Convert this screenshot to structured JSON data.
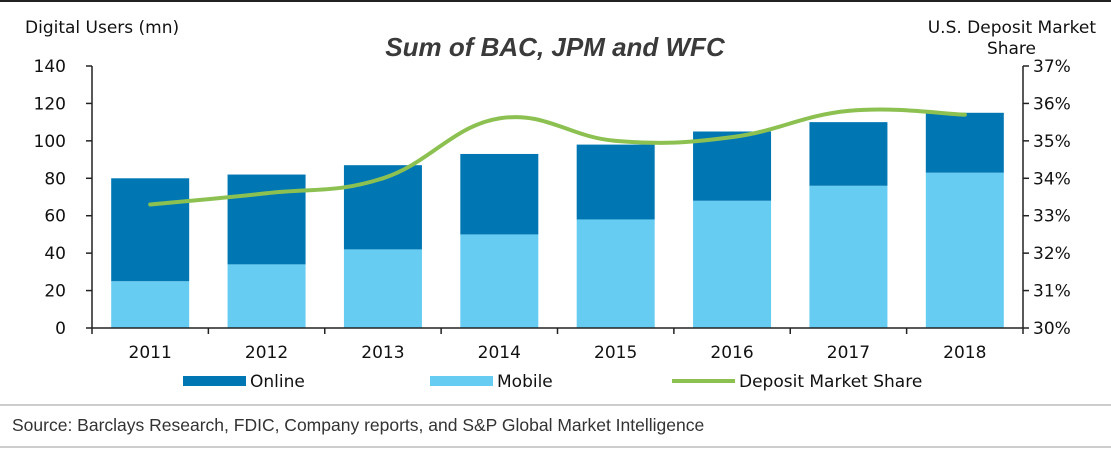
{
  "chart_data": {
    "type": "bar",
    "title": "Sum of BAC, JPM and WFC",
    "ylabel": "Digital Users (mn)",
    "y2label_line1": "U.S. Deposit Market",
    "y2label_line2": "Share",
    "categories": [
      "2011",
      "2012",
      "2013",
      "2014",
      "2015",
      "2016",
      "2017",
      "2018"
    ],
    "ylim": [
      0,
      140
    ],
    "yticks": [
      0,
      20,
      40,
      60,
      80,
      100,
      120,
      140
    ],
    "y2lim": [
      30,
      37
    ],
    "y2ticks": [
      "30%",
      "31%",
      "32%",
      "33%",
      "34%",
      "35%",
      "36%",
      "37%"
    ],
    "stacked": true,
    "series": [
      {
        "name": "Mobile",
        "kind": "bar",
        "color": "#66ccf2",
        "values": [
          25,
          34,
          42,
          50,
          58,
          68,
          76,
          83
        ]
      },
      {
        "name": "Online",
        "kind": "bar",
        "color": "#0077b3",
        "values": [
          55,
          48,
          45,
          43,
          40,
          37,
          34,
          32
        ]
      },
      {
        "name": "Deposit Market Share",
        "kind": "line",
        "axis": "right",
        "color": "#8cc152",
        "values": [
          33.3,
          33.6,
          34.0,
          35.6,
          35.0,
          35.1,
          35.8,
          35.7
        ]
      }
    ],
    "legend": [
      "Online",
      "Mobile",
      "Deposit Market Share"
    ],
    "legend_position": "bottom",
    "grid": false
  },
  "footer": {
    "source": "Source: Barclays Research, FDIC, Company reports, and S&P Global Market Intelligence"
  }
}
